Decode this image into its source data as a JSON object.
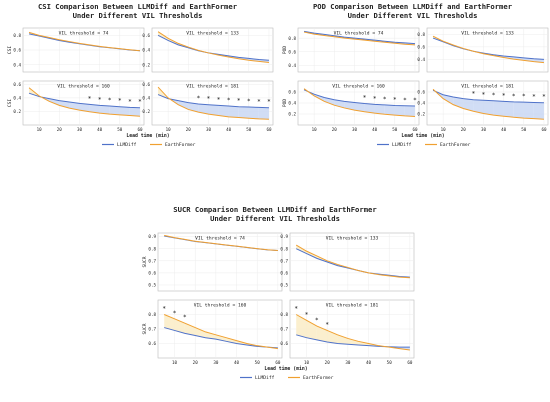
{
  "legend": {
    "series_a": "LLMDiff",
    "series_b": "EarthFormer"
  },
  "colors": {
    "llmdiff": "#4f72c9",
    "earthformer": "#f0a030",
    "fill_llm_better": "#c9d7f3",
    "fill_ef_better": "#faecc6",
    "panel_border": "#bbbbbb",
    "grid": "#ececec"
  },
  "chart_data": [
    {
      "type": "line",
      "title_line1": "CSI Comparison Between LLMDiff and EarthFormer",
      "title_line2": "Under Different VIL Thresholds",
      "ylabel": "CSI",
      "xlabel": "Lead time (min)",
      "x": [
        5,
        10,
        15,
        20,
        25,
        30,
        35,
        40,
        45,
        50,
        55,
        60
      ],
      "xticks": [
        10,
        20,
        30,
        40,
        50,
        60
      ],
      "panels": [
        {
          "subtitle": "VIL threshold = 74",
          "ylim": [
            0.3,
            0.9
          ],
          "yticks": [
            0.4,
            0.6,
            0.8
          ],
          "series": [
            {
              "name": "LLMDiff",
              "values": [
                0.82,
                0.79,
                0.76,
                0.73,
                0.705,
                0.685,
                0.665,
                0.645,
                0.63,
                0.615,
                0.6,
                0.59
              ]
            },
            {
              "name": "EarthFormer",
              "values": [
                0.84,
                0.8,
                0.77,
                0.74,
                0.715,
                0.69,
                0.67,
                0.65,
                0.633,
                0.618,
                0.603,
                0.59
              ]
            }
          ],
          "stars": []
        },
        {
          "subtitle": "VIL threshold = 133",
          "ylim": [
            0.1,
            0.7
          ],
          "yticks": [
            0.2,
            0.4,
            0.6
          ],
          "series": [
            {
              "name": "LLMDiff",
              "values": [
                0.6,
                0.53,
                0.47,
                0.43,
                0.39,
                0.36,
                0.34,
                0.32,
                0.3,
                0.285,
                0.27,
                0.26
              ]
            },
            {
              "name": "EarthFormer",
              "values": [
                0.65,
                0.56,
                0.49,
                0.44,
                0.395,
                0.36,
                0.33,
                0.305,
                0.28,
                0.26,
                0.245,
                0.23
              ]
            }
          ],
          "stars": []
        },
        {
          "subtitle": "VIL threshold = 160",
          "ylim": [
            0.0,
            0.65
          ],
          "yticks": [
            0.2,
            0.4,
            0.6
          ],
          "series": [
            {
              "name": "LLMDiff",
              "values": [
                0.47,
                0.42,
                0.39,
                0.36,
                0.34,
                0.32,
                0.305,
                0.29,
                0.28,
                0.27,
                0.26,
                0.255
              ]
            },
            {
              "name": "EarthFormer",
              "values": [
                0.55,
                0.43,
                0.35,
                0.29,
                0.25,
                0.22,
                0.195,
                0.175,
                0.16,
                0.15,
                0.14,
                0.13
              ]
            }
          ],
          "stars": [
            35,
            40,
            45,
            50,
            55,
            60
          ]
        },
        {
          "subtitle": "VIL threshold = 181",
          "ylim": [
            0.0,
            0.65
          ],
          "yticks": [
            0.2,
            0.4,
            0.6
          ],
          "series": [
            {
              "name": "LLMDiff",
              "values": [
                0.45,
                0.39,
                0.36,
                0.33,
                0.31,
                0.3,
                0.29,
                0.28,
                0.27,
                0.265,
                0.26,
                0.255
              ]
            },
            {
              "name": "EarthFormer",
              "values": [
                0.56,
                0.4,
                0.3,
                0.23,
                0.19,
                0.16,
                0.14,
                0.12,
                0.11,
                0.1,
                0.09,
                0.085
              ]
            }
          ],
          "stars": [
            25,
            30,
            35,
            40,
            45,
            50,
            55,
            60
          ]
        }
      ]
    },
    {
      "type": "line",
      "title_line1": "POD Comparison Between LLMDiff and EarthFormer",
      "title_line2": "Under Different VIL Thresholds",
      "ylabel": "POD",
      "xlabel": "Lead time (min)",
      "x": [
        5,
        10,
        15,
        20,
        25,
        30,
        35,
        40,
        45,
        50,
        55,
        60
      ],
      "xticks": [
        10,
        20,
        30,
        40,
        50,
        60
      ],
      "panels": [
        {
          "subtitle": "VIL threshold = 74",
          "ylim": [
            0.3,
            0.95
          ],
          "yticks": [
            0.4,
            0.6,
            0.8
          ],
          "series": [
            {
              "name": "LLMDiff",
              "values": [
                0.9,
                0.875,
                0.855,
                0.835,
                0.815,
                0.8,
                0.785,
                0.77,
                0.755,
                0.74,
                0.73,
                0.72
              ]
            },
            {
              "name": "EarthFormer",
              "values": [
                0.89,
                0.86,
                0.84,
                0.82,
                0.8,
                0.785,
                0.77,
                0.755,
                0.74,
                0.725,
                0.71,
                0.7
              ]
            }
          ],
          "stars": []
        },
        {
          "subtitle": "VIL threshold = 133",
          "ylim": [
            0.2,
            0.9
          ],
          "yticks": [
            0.4,
            0.6,
            0.8
          ],
          "series": [
            {
              "name": "LLMDiff",
              "values": [
                0.74,
                0.68,
                0.62,
                0.57,
                0.53,
                0.5,
                0.475,
                0.455,
                0.44,
                0.425,
                0.41,
                0.4
              ]
            },
            {
              "name": "EarthFormer",
              "values": [
                0.77,
                0.69,
                0.63,
                0.575,
                0.53,
                0.49,
                0.46,
                0.43,
                0.405,
                0.385,
                0.365,
                0.35
              ]
            }
          ],
          "stars": []
        },
        {
          "subtitle": "VIL threshold = 160",
          "ylim": [
            0.0,
            0.8
          ],
          "yticks": [
            0.2,
            0.4,
            0.6
          ],
          "series": [
            {
              "name": "LLMDiff",
              "values": [
                0.64,
                0.56,
                0.5,
                0.46,
                0.43,
                0.41,
                0.39,
                0.375,
                0.365,
                0.355,
                0.35,
                0.345
              ]
            },
            {
              "name": "EarthFormer",
              "values": [
                0.66,
                0.53,
                0.43,
                0.36,
                0.31,
                0.27,
                0.24,
                0.215,
                0.195,
                0.18,
                0.165,
                0.155
              ]
            }
          ],
          "stars": [
            35,
            40,
            45,
            50,
            55,
            60
          ]
        },
        {
          "subtitle": "VIL threshold = 181",
          "ylim": [
            0.0,
            0.8
          ],
          "yticks": [
            0.2,
            0.4,
            0.6
          ],
          "series": [
            {
              "name": "LLMDiff",
              "values": [
                0.63,
                0.55,
                0.51,
                0.48,
                0.46,
                0.45,
                0.44,
                0.43,
                0.42,
                0.415,
                0.41,
                0.405
              ]
            },
            {
              "name": "EarthFormer",
              "values": [
                0.65,
                0.48,
                0.37,
                0.3,
                0.25,
                0.21,
                0.18,
                0.16,
                0.14,
                0.125,
                0.115,
                0.105
              ]
            }
          ],
          "stars": [
            25,
            30,
            35,
            40,
            45,
            50,
            55,
            60
          ]
        }
      ]
    },
    {
      "type": "line",
      "title_line1": "SUCR Comparison Between LLMDiff and EarthFormer",
      "title_line2": "Under Different VIL Thresholds",
      "ylabel": "SUCR",
      "xlabel": "Lead time (min)",
      "x": [
        5,
        10,
        15,
        20,
        25,
        30,
        35,
        40,
        45,
        50,
        55,
        60
      ],
      "xticks": [
        10,
        20,
        30,
        40,
        50,
        60
      ],
      "panels": [
        {
          "subtitle": "VIL threshold = 74",
          "ylim": [
            0.45,
            0.93
          ],
          "yticks": [
            0.5,
            0.6,
            0.7,
            0.8,
            0.9
          ],
          "series": [
            {
              "name": "LLMDiff",
              "values": [
                0.905,
                0.89,
                0.875,
                0.86,
                0.85,
                0.84,
                0.83,
                0.82,
                0.81,
                0.8,
                0.79,
                0.785
              ]
            },
            {
              "name": "EarthFormer",
              "values": [
                0.91,
                0.892,
                0.877,
                0.862,
                0.851,
                0.841,
                0.831,
                0.821,
                0.811,
                0.801,
                0.791,
                0.785
              ]
            }
          ],
          "stars": []
        },
        {
          "subtitle": "VIL threshold = 133",
          "ylim": [
            0.45,
            0.93
          ],
          "yticks": [
            0.5,
            0.6,
            0.7,
            0.8,
            0.9
          ],
          "series": [
            {
              "name": "LLMDiff",
              "values": [
                0.8,
                0.76,
                0.72,
                0.69,
                0.66,
                0.64,
                0.62,
                0.6,
                0.59,
                0.58,
                0.57,
                0.565
              ]
            },
            {
              "name": "EarthFormer",
              "values": [
                0.83,
                0.78,
                0.74,
                0.7,
                0.67,
                0.645,
                0.62,
                0.6,
                0.585,
                0.575,
                0.565,
                0.56
              ]
            }
          ],
          "stars": []
        },
        {
          "subtitle": "VIL threshold = 160",
          "ylim": [
            0.5,
            0.9
          ],
          "yticks": [
            0.6,
            0.7,
            0.8
          ],
          "series": [
            {
              "name": "LLMDiff",
              "values": [
                0.71,
                0.69,
                0.67,
                0.655,
                0.64,
                0.63,
                0.615,
                0.6,
                0.59,
                0.58,
                0.575,
                0.57
              ]
            },
            {
              "name": "EarthFormer",
              "values": [
                0.8,
                0.77,
                0.74,
                0.71,
                0.68,
                0.66,
                0.64,
                0.62,
                0.6,
                0.585,
                0.575,
                0.565
              ]
            }
          ],
          "stars": [
            5,
            10,
            15
          ]
        },
        {
          "subtitle": "VIL threshold = 181",
          "ylim": [
            0.5,
            0.9
          ],
          "yticks": [
            0.6,
            0.7,
            0.8
          ],
          "series": [
            {
              "name": "LLMDiff",
              "values": [
                0.66,
                0.64,
                0.625,
                0.61,
                0.6,
                0.595,
                0.59,
                0.585,
                0.58,
                0.578,
                0.575,
                0.575
              ]
            },
            {
              "name": "EarthFormer",
              "values": [
                0.8,
                0.76,
                0.72,
                0.69,
                0.66,
                0.635,
                0.615,
                0.6,
                0.585,
                0.575,
                0.565,
                0.555
              ]
            }
          ],
          "stars": [
            5,
            10,
            15,
            20
          ]
        }
      ]
    }
  ]
}
